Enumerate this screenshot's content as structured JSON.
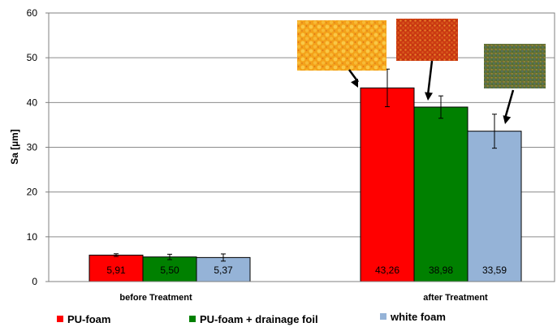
{
  "chart_data": {
    "type": "bar",
    "ylabel": "Sa [µm]",
    "xlabel": "",
    "ylim": [
      0,
      60
    ],
    "yticks": [
      0,
      10,
      20,
      30,
      40,
      50,
      60
    ],
    "grid": true,
    "legend_position": "bottom",
    "categories": [
      "before Treatment",
      "after Treatment"
    ],
    "series": [
      {
        "name": "PU-foam",
        "color": "#ff0000",
        "values": [
          5.91,
          43.26
        ],
        "labels": [
          "5,91",
          "43,26"
        ],
        "errors": [
          0.3,
          4.2
        ]
      },
      {
        "name": "PU-foam + drainage foil",
        "color": "#008000",
        "values": [
          5.5,
          38.98
        ],
        "labels": [
          "5,50",
          "38,98"
        ],
        "errors": [
          0.6,
          2.5
        ]
      },
      {
        "name": "white foam",
        "color": "#95b3d7",
        "values": [
          5.37,
          33.59
        ],
        "labels": [
          "5,37",
          "33,59"
        ],
        "errors": [
          0.8,
          3.8
        ]
      }
    ],
    "insets": [
      {
        "series": "PU-foam",
        "texture": "orange-cell-texture"
      },
      {
        "series": "PU-foam + drainage foil",
        "texture": "red-orange-mesh-texture"
      },
      {
        "series": "white foam",
        "texture": "green-mixed-texture"
      }
    ]
  }
}
